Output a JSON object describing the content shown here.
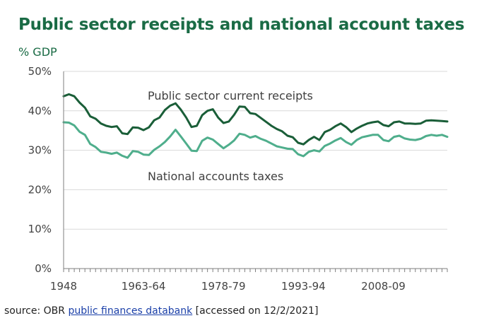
{
  "source": {
    "prefix": "source: OBR ",
    "link_text": "public finances databank",
    "suffix": " [accessed on 12/2/2021]"
  },
  "chart_data": {
    "type": "line",
    "title": "Public sector receipts and national account taxes",
    "ylabel": "% GDP",
    "xlabel": "",
    "ylim": [
      0,
      50
    ],
    "yticks": [
      "0%",
      "10%",
      "20%",
      "30%",
      "40%",
      "50%"
    ],
    "xticks": [
      "1948",
      "1963-64",
      "1978-79",
      "1993-94",
      "2008-09"
    ],
    "grid": true,
    "x": [
      1948,
      1949,
      1950,
      1951,
      1952,
      1953,
      1954,
      1955,
      1956,
      1957,
      1958,
      1959,
      1960,
      1961,
      1962,
      1963,
      1964,
      1965,
      1966,
      1967,
      1968,
      1969,
      1970,
      1971,
      1972,
      1973,
      1974,
      1975,
      1976,
      1977,
      1978,
      1979,
      1980,
      1981,
      1982,
      1983,
      1984,
      1985,
      1986,
      1987,
      1988,
      1989,
      1990,
      1991,
      1992,
      1993,
      1994,
      1995,
      1996,
      1997,
      1998,
      1999,
      2000,
      2001,
      2002,
      2003,
      2004,
      2005,
      2006,
      2007,
      2008,
      2009,
      2010,
      2011,
      2012,
      2013,
      2014,
      2015,
      2016,
      2017,
      2018,
      2019,
      2020
    ],
    "series": [
      {
        "name": "Public sector current receipts",
        "color": "#1a5e38",
        "values": [
          43.7,
          44.2,
          43.7,
          42.1,
          40.8,
          38.6,
          38.0,
          36.8,
          36.2,
          35.9,
          36.1,
          34.3,
          34.1,
          35.8,
          35.7,
          35.1,
          35.8,
          37.6,
          38.3,
          40.2,
          41.3,
          41.9,
          40.3,
          38.3,
          35.9,
          36.2,
          38.9,
          40.0,
          40.4,
          38.3,
          36.9,
          37.3,
          39.0,
          41.1,
          41.0,
          39.4,
          39.2,
          38.2,
          37.2,
          36.2,
          35.4,
          34.8,
          33.7,
          33.3,
          31.9,
          31.5,
          32.6,
          33.4,
          32.6,
          34.6,
          35.2,
          36.1,
          36.8,
          35.9,
          34.6,
          35.5,
          36.2,
          36.8,
          37.1,
          37.3,
          36.4,
          36.1,
          37.1,
          37.3,
          36.8,
          36.8,
          36.7,
          36.8,
          37.5,
          37.6,
          37.5,
          37.4,
          37.3
        ]
      },
      {
        "name": "National accounts taxes",
        "color": "#4fae8c",
        "values": [
          37.1,
          37.0,
          36.3,
          34.7,
          33.9,
          31.6,
          30.8,
          29.6,
          29.4,
          29.1,
          29.4,
          28.6,
          28.1,
          29.8,
          29.6,
          28.9,
          28.8,
          30.1,
          31.0,
          32.1,
          33.5,
          35.2,
          33.5,
          31.7,
          29.9,
          29.8,
          32.4,
          33.2,
          32.7,
          31.6,
          30.5,
          31.4,
          32.5,
          34.2,
          33.9,
          33.2,
          33.6,
          32.9,
          32.4,
          31.7,
          31.0,
          30.7,
          30.4,
          30.3,
          29.0,
          28.5,
          29.6,
          30.0,
          29.7,
          31.1,
          31.7,
          32.5,
          33.1,
          32.1,
          31.4,
          32.6,
          33.3,
          33.6,
          33.9,
          33.9,
          32.6,
          32.3,
          33.4,
          33.7,
          33.0,
          32.7,
          32.6,
          32.9,
          33.6,
          33.9,
          33.7,
          33.9,
          33.4
        ]
      }
    ]
  }
}
